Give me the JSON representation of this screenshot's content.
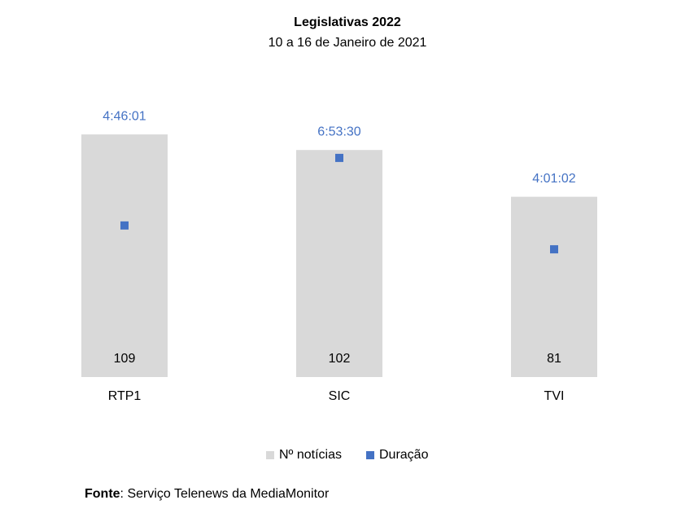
{
  "chart_data": {
    "type": "bar",
    "title": "Legislativas 2022",
    "subtitle": "10 a 16 de Janeiro de 2021",
    "categories": [
      "RTP1",
      "SIC",
      "TVI"
    ],
    "series": [
      {
        "name": "Nº notícias",
        "color": "#d9d9d9",
        "values": [
          109,
          102,
          81
        ]
      },
      {
        "name": "Duração",
        "color": "#4472c4",
        "type": "scatter",
        "axis": "y2",
        "values": [
          0.19862269,
          0.28715278,
          0.16738426
        ],
        "value_labels": [
          "4:46:01",
          "6:53:30",
          "4:01:02"
        ]
      }
    ],
    "ylim": [
      0,
      120
    ],
    "y2lim": [
      0,
      0.35
    ],
    "legend": "bottom",
    "source": {
      "label": "Fonte",
      "text": ": Serviço Telenews da MediaMonitor"
    }
  }
}
